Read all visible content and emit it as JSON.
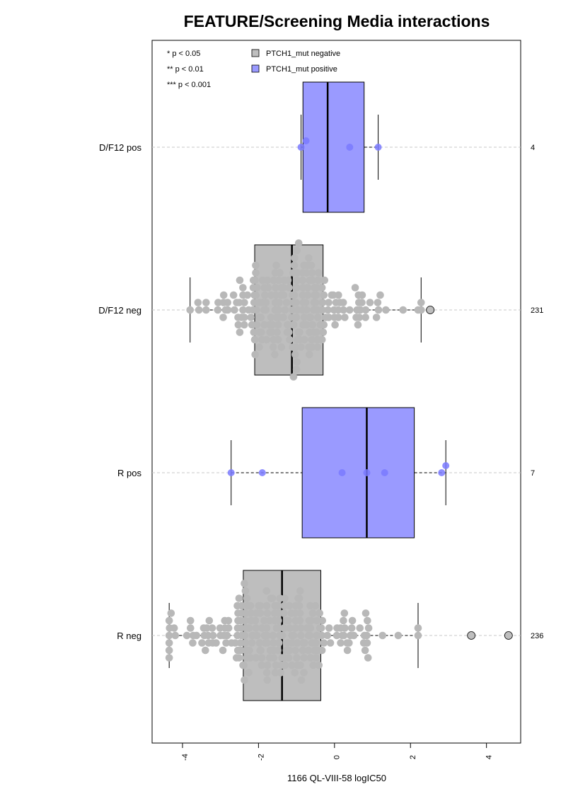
{
  "chart_data": {
    "type": "box",
    "title": "FEATURE/Screening Media interactions",
    "xlabel": "1166 QL-VIII-58 logIC50",
    "xlim": [
      -4.8,
      4.9
    ],
    "xticks": [
      -4,
      -2,
      0,
      2,
      4
    ],
    "xtick_labels": [
      "-4",
      "-2",
      "0",
      "2",
      "4"
    ],
    "significance_legend": [
      "* p < 0.05",
      "** p < 0.01",
      "*** p < 0.001"
    ],
    "legend": [
      {
        "label": "PTCH1_mut negative",
        "color": "#bebebe"
      },
      {
        "label": "PTCH1_mut positive",
        "color": "#9a9aff"
      }
    ],
    "colors": {
      "negative_box": "#bebebe",
      "positive_box": "#9a9aff",
      "negative_point": "#b8b8b8",
      "positive_point": "#7a7aff"
    },
    "groups": [
      {
        "label": "D/F12 pos",
        "n": "4",
        "status": "positive",
        "whisker_low": -0.88,
        "q1": -0.83,
        "median": -0.18,
        "q3": 0.78,
        "whisker_high": 1.15,
        "outliers": [],
        "points": [
          -0.88,
          -0.75,
          0.4,
          1.15
        ]
      },
      {
        "label": "D/F12 neg",
        "n": "231",
        "status": "negative",
        "whisker_low": -3.8,
        "q1": -2.1,
        "median": -1.12,
        "q3": -0.3,
        "whisker_high": 2.28,
        "outliers": [
          2.52
        ],
        "n_points": 231
      },
      {
        "label": "R pos",
        "n": "7",
        "status": "positive",
        "whisker_low": -2.72,
        "q1": -0.85,
        "median": 0.85,
        "q3": 2.1,
        "whisker_high": 2.93,
        "outliers": [],
        "points": [
          -2.72,
          -1.9,
          0.2,
          0.85,
          1.32,
          2.82,
          2.93
        ]
      },
      {
        "label": "R neg",
        "n": "236",
        "status": "negative",
        "whisker_low": -4.35,
        "q1": -2.4,
        "median": -1.38,
        "q3": -0.36,
        "whisker_high": 2.2,
        "outliers": [
          3.6,
          4.58
        ],
        "n_points": 236
      }
    ]
  }
}
